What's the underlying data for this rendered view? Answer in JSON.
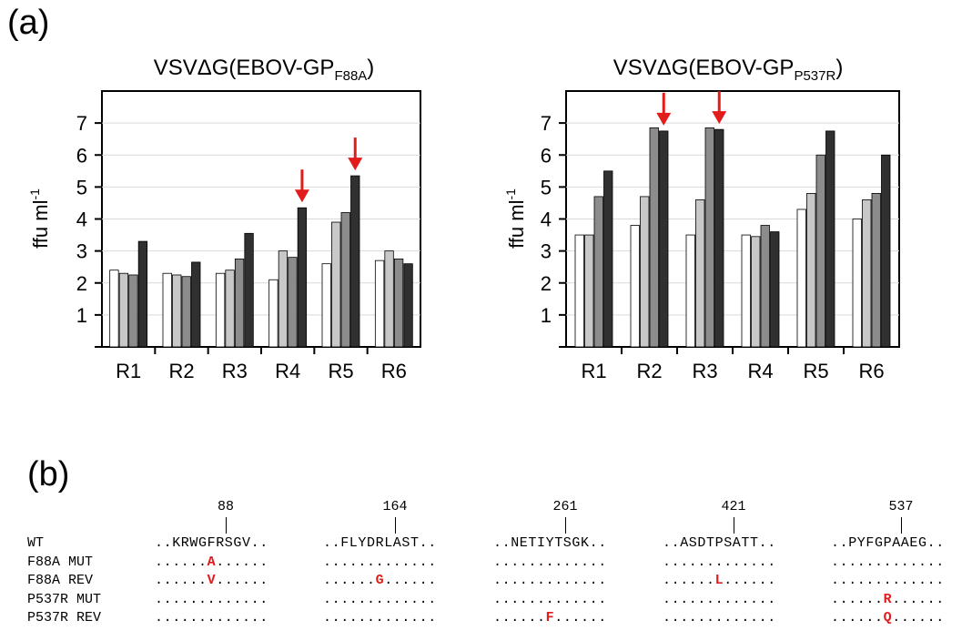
{
  "panel_a_label": "(a)",
  "panel_b_label": "(b)",
  "chart_data": [
    {
      "type": "bar",
      "title": "VSVΔG(EBOV-GP",
      "title_subscript": "F88A",
      "title_suffix": ")",
      "ylabel": "ffu ml",
      "ylabel_superscript": "-1",
      "ylim": [
        0,
        8
      ],
      "yticks": [
        1,
        2,
        3,
        4,
        5,
        6,
        7
      ],
      "categories": [
        "R1",
        "R2",
        "R3",
        "R4",
        "R5",
        "R6"
      ],
      "series_colors": [
        "#ffffff",
        "#c8c8c8",
        "#8c8c8c",
        "#303030"
      ],
      "series": [
        {
          "values": [
            2.4,
            2.3,
            2.3,
            2.1,
            2.6,
            2.7
          ]
        },
        {
          "values": [
            2.3,
            2.25,
            2.4,
            3.0,
            3.9,
            3.0
          ]
        },
        {
          "values": [
            2.25,
            2.2,
            2.75,
            2.8,
            4.2,
            2.75
          ]
        },
        {
          "values": [
            3.3,
            2.65,
            3.55,
            4.35,
            5.35,
            2.6
          ]
        }
      ],
      "arrows": [
        {
          "category": "R4"
        },
        {
          "category": "R5"
        }
      ]
    },
    {
      "type": "bar",
      "title": "VSVΔG(EBOV-GP",
      "title_subscript": "P537R",
      "title_suffix": ")",
      "ylabel": "ffu ml",
      "ylabel_superscript": "-1",
      "ylim": [
        0,
        8
      ],
      "yticks": [
        1,
        2,
        3,
        4,
        5,
        6,
        7
      ],
      "categories": [
        "R1",
        "R2",
        "R3",
        "R4",
        "R5",
        "R6"
      ],
      "series_colors": [
        "#ffffff",
        "#c8c8c8",
        "#8c8c8c",
        "#303030"
      ],
      "series": [
        {
          "values": [
            3.5,
            3.8,
            3.5,
            3.5,
            4.3,
            4.0
          ]
        },
        {
          "values": [
            3.5,
            4.7,
            4.6,
            3.45,
            4.8,
            4.6
          ]
        },
        {
          "values": [
            4.7,
            6.85,
            6.85,
            3.8,
            6.0,
            4.8
          ]
        },
        {
          "values": [
            5.5,
            6.75,
            6.8,
            3.6,
            6.75,
            6.0
          ]
        }
      ],
      "arrows": [
        {
          "category": "R2"
        },
        {
          "category": "R3"
        }
      ]
    }
  ],
  "alignment": {
    "positions": [
      "88",
      "164",
      "261",
      "421",
      "537"
    ],
    "rows": [
      {
        "name": "WT",
        "blocks": [
          {
            "pre": "..KRWG",
            "mut": "",
            "post": "FRSGV.."
          },
          {
            "pre": "..FLYD",
            "mut": "",
            "post": "RLAST.."
          },
          {
            "pre": "..NETI",
            "mut": "",
            "post": "YTSGK.."
          },
          {
            "pre": "..ASDT",
            "mut": "",
            "post": "PSATT.."
          },
          {
            "pre": "..PYFG",
            "mut": "",
            "post": "PAAEG.."
          }
        ]
      },
      {
        "name": "F88A MUT",
        "blocks": [
          {
            "pre": "......",
            "mut": "A",
            "post": "......"
          },
          {
            "pre": ".............",
            "mut": "",
            "post": ""
          },
          {
            "pre": ".............",
            "mut": "",
            "post": ""
          },
          {
            "pre": ".............",
            "mut": "",
            "post": ""
          },
          {
            "pre": ".............",
            "mut": "",
            "post": ""
          }
        ]
      },
      {
        "name": "F88A REV",
        "blocks": [
          {
            "pre": "......",
            "mut": "V",
            "post": "......"
          },
          {
            "pre": "......",
            "mut": "G",
            "post": "......"
          },
          {
            "pre": ".............",
            "mut": "",
            "post": ""
          },
          {
            "pre": "......",
            "mut": "L",
            "post": "......"
          },
          {
            "pre": ".............",
            "mut": "",
            "post": ""
          }
        ]
      },
      {
        "name": "P537R MUT",
        "blocks": [
          {
            "pre": ".............",
            "mut": "",
            "post": ""
          },
          {
            "pre": ".............",
            "mut": "",
            "post": ""
          },
          {
            "pre": ".............",
            "mut": "",
            "post": ""
          },
          {
            "pre": ".............",
            "mut": "",
            "post": ""
          },
          {
            "pre": "......",
            "mut": "R",
            "post": "......"
          }
        ]
      },
      {
        "name": "P537R REV",
        "blocks": [
          {
            "pre": ".............",
            "mut": "",
            "post": ""
          },
          {
            "pre": ".............",
            "mut": "",
            "post": ""
          },
          {
            "pre": "......",
            "mut": "F",
            "post": "......"
          },
          {
            "pre": ".............",
            "mut": "",
            "post": ""
          },
          {
            "pre": "......",
            "mut": "Q",
            "post": "......"
          }
        ]
      }
    ]
  },
  "colors": {
    "arrow": "#e21b1b",
    "mutation": "#e21b1b"
  }
}
